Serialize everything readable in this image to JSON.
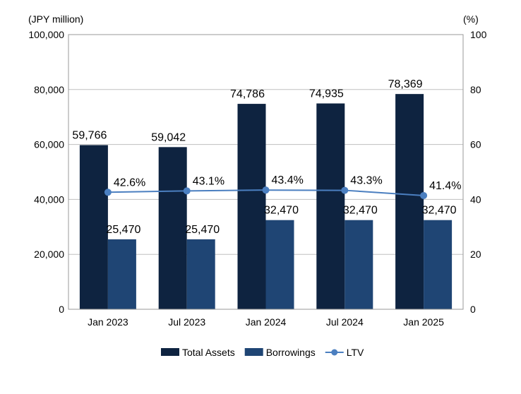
{
  "chart_data": {
    "type": "bar",
    "categories": [
      "Jan 2023",
      "Jul 2023",
      "Jan 2024",
      "Jul 2024",
      "Jan 2025"
    ],
    "series": [
      {
        "name": "Total Assets",
        "type": "bar",
        "axis": "left",
        "color": "#0e2340",
        "values": [
          59766,
          59042,
          74786,
          74935,
          78369
        ],
        "labels": [
          "59,766",
          "59,042",
          "74,786",
          "74,935",
          "78,369"
        ]
      },
      {
        "name": "Borrowings",
        "type": "bar",
        "axis": "left",
        "color": "#1f4574",
        "values": [
          25470,
          25470,
          32470,
          32470,
          32470
        ],
        "labels": [
          "25,470",
          "25,470",
          "32,470",
          "32,470",
          "32,470"
        ]
      },
      {
        "name": "LTV",
        "type": "line",
        "axis": "right",
        "color": "#4b7fc0",
        "values": [
          42.6,
          43.1,
          43.4,
          43.3,
          41.4
        ],
        "labels": [
          "42.6%",
          "43.1%",
          "43.4%",
          "43.3%",
          "41.4%"
        ]
      }
    ],
    "left_axis": {
      "unit_label": "(JPY million)",
      "ylim": [
        0,
        100000
      ],
      "ticks": [
        0,
        20000,
        40000,
        60000,
        80000,
        100000
      ],
      "tick_labels": [
        "0",
        "20,000",
        "40,000",
        "60,000",
        "80,000",
        "100,000"
      ]
    },
    "right_axis": {
      "unit_label": "(%)",
      "ylim": [
        0,
        100
      ],
      "ticks": [
        0,
        20,
        40,
        60,
        80,
        100
      ],
      "tick_labels": [
        "0",
        "20",
        "40",
        "60",
        "80",
        "100"
      ]
    },
    "grid": true,
    "legend_position": "bottom"
  }
}
